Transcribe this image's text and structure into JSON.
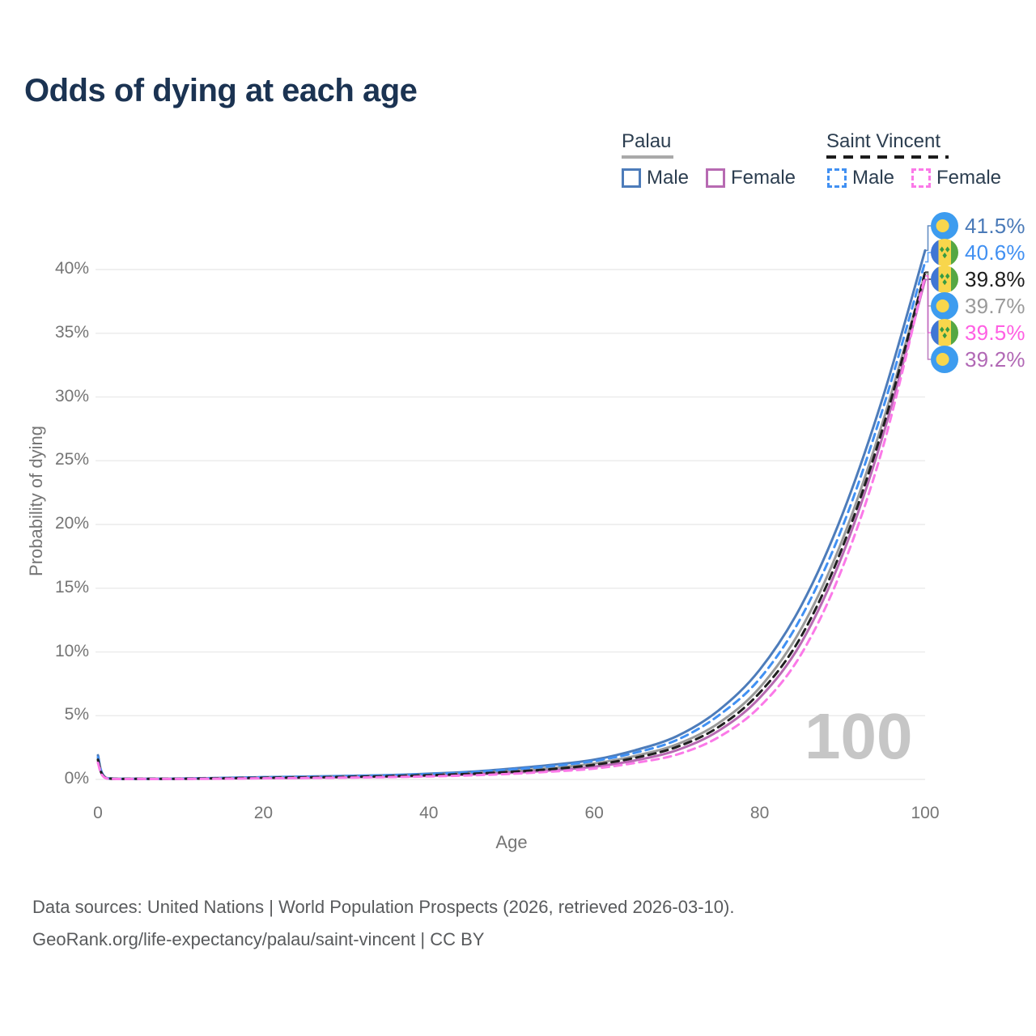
{
  "title": "Odds of dying at each age",
  "legend": {
    "groups": [
      {
        "label": "Palau",
        "underline_style": "solid",
        "underline_color": "#a9a9a9",
        "items": [
          {
            "label": "Male",
            "color": "#4d7cba",
            "dash": false
          },
          {
            "label": "Female",
            "color": "#b76ab2",
            "dash": false
          }
        ]
      },
      {
        "label": "Saint Vincent",
        "underline_style": "dashed",
        "underline_color": "#1c1c1c",
        "items": [
          {
            "label": "Male",
            "color": "#4190f2",
            "dash": true
          },
          {
            "label": "Female",
            "color": "#fb79e8",
            "dash": true
          }
        ]
      }
    ]
  },
  "chart_data": {
    "type": "line",
    "title": "Odds of dying at each age",
    "xlabel": "Age",
    "ylabel": "Probability of dying",
    "xlim": [
      0,
      100
    ],
    "ylim": [
      0,
      44
    ],
    "grid": "horizontal",
    "legend_position": "top-right",
    "xticks": [
      "0",
      "20",
      "40",
      "60",
      "80",
      "100"
    ],
    "xtick_values": [
      0,
      20,
      40,
      60,
      80,
      100
    ],
    "yticks": [
      "0%",
      "5%",
      "10%",
      "15%",
      "20%",
      "25%",
      "30%",
      "35%",
      "40%"
    ],
    "ytick_values": [
      0,
      5,
      10,
      15,
      20,
      25,
      30,
      35,
      40
    ],
    "x": [
      0,
      1,
      5,
      10,
      15,
      20,
      25,
      30,
      35,
      40,
      45,
      50,
      55,
      60,
      65,
      70,
      75,
      80,
      85,
      90,
      95,
      100
    ],
    "series": [
      {
        "name": "Palau Male",
        "country": "palau",
        "sex": "male",
        "color": "#4d7cba",
        "dash": false,
        "values": [
          1.9,
          0.12,
          0.06,
          0.07,
          0.12,
          0.18,
          0.22,
          0.28,
          0.34,
          0.45,
          0.6,
          0.85,
          1.15,
          1.55,
          2.3,
          3.4,
          5.4,
          8.6,
          13.6,
          20.8,
          30.2,
          41.5
        ]
      },
      {
        "name": "Palau Both sexes",
        "country": "palau",
        "sex": "both",
        "color": "#9a9a9a",
        "dash": false,
        "values": [
          1.6,
          0.1,
          0.05,
          0.06,
          0.09,
          0.14,
          0.17,
          0.22,
          0.27,
          0.36,
          0.48,
          0.66,
          0.9,
          1.25,
          1.85,
          2.75,
          4.4,
          7.2,
          11.8,
          18.8,
          28.3,
          39.7
        ]
      },
      {
        "name": "Palau Female",
        "country": "palau",
        "sex": "female",
        "color": "#b76ab2",
        "dash": false,
        "values": [
          1.45,
          0.09,
          0.04,
          0.05,
          0.07,
          0.1,
          0.13,
          0.17,
          0.21,
          0.28,
          0.38,
          0.52,
          0.72,
          1.0,
          1.5,
          2.3,
          3.8,
          6.4,
          10.7,
          17.6,
          27.2,
          39.2
        ]
      },
      {
        "name": "Saint Vincent Male",
        "country": "saint-vincent",
        "sex": "male",
        "color": "#4190f2",
        "dash": true,
        "values": [
          1.75,
          0.11,
          0.05,
          0.06,
          0.11,
          0.17,
          0.21,
          0.26,
          0.32,
          0.42,
          0.56,
          0.78,
          1.05,
          1.45,
          2.1,
          3.1,
          5.0,
          7.9,
          12.7,
          19.8,
          29.3,
          40.6
        ]
      },
      {
        "name": "Saint Vincent Both sexes",
        "country": "saint-vincent",
        "sex": "both",
        "color": "#1f1f1f",
        "dash": true,
        "values": [
          1.55,
          0.1,
          0.05,
          0.05,
          0.09,
          0.13,
          0.16,
          0.2,
          0.25,
          0.33,
          0.44,
          0.6,
          0.82,
          1.15,
          1.7,
          2.55,
          4.1,
          6.8,
          11.2,
          18.2,
          27.8,
          39.8
        ]
      },
      {
        "name": "Saint Vincent Female",
        "country": "saint-vincent",
        "sex": "female",
        "color": "#fb79e8",
        "dash": true,
        "values": [
          1.3,
          0.08,
          0.04,
          0.04,
          0.06,
          0.09,
          0.11,
          0.14,
          0.18,
          0.24,
          0.32,
          0.44,
          0.62,
          0.85,
          1.3,
          1.95,
          3.3,
          5.7,
          9.8,
          16.6,
          26.3,
          39.5
        ]
      }
    ],
    "end_labels": [
      {
        "value": "41.5%",
        "series": "Palau Male",
        "flag": "palau",
        "color": "#4a7ab8"
      },
      {
        "value": "40.6%",
        "series": "Saint Vincent Male",
        "flag": "saint-vincent",
        "color": "#4190f2"
      },
      {
        "value": "39.8%",
        "series": "Saint Vincent Both sexes",
        "flag": "saint-vincent",
        "color": "#1c1c1c"
      },
      {
        "value": "39.7%",
        "series": "Palau Both sexes",
        "flag": "palau",
        "color": "#9a9a9a"
      },
      {
        "value": "39.5%",
        "series": "Saint Vincent Female",
        "flag": "saint-vincent",
        "color": "#ff5fe3"
      },
      {
        "value": "39.2%",
        "series": "Palau Female",
        "flag": "palau",
        "color": "#b168b5"
      }
    ],
    "hover_age_watermark": "100",
    "flag_colors": {
      "palau": {
        "bg": "#3d9cef",
        "disc": "#f8d64c"
      },
      "saint_vincent": {
        "blue": "#3f76d4",
        "yellow": "#f8d64c",
        "green": "#55a743",
        "diamonds": "#379b43"
      }
    }
  },
  "footer": {
    "line1": "Data sources: United Nations | World Population Prospects (2026, retrieved 2026-03-10).",
    "line2": "GeoRank.org/life-expectancy/palau/saint-vincent | CC BY"
  }
}
